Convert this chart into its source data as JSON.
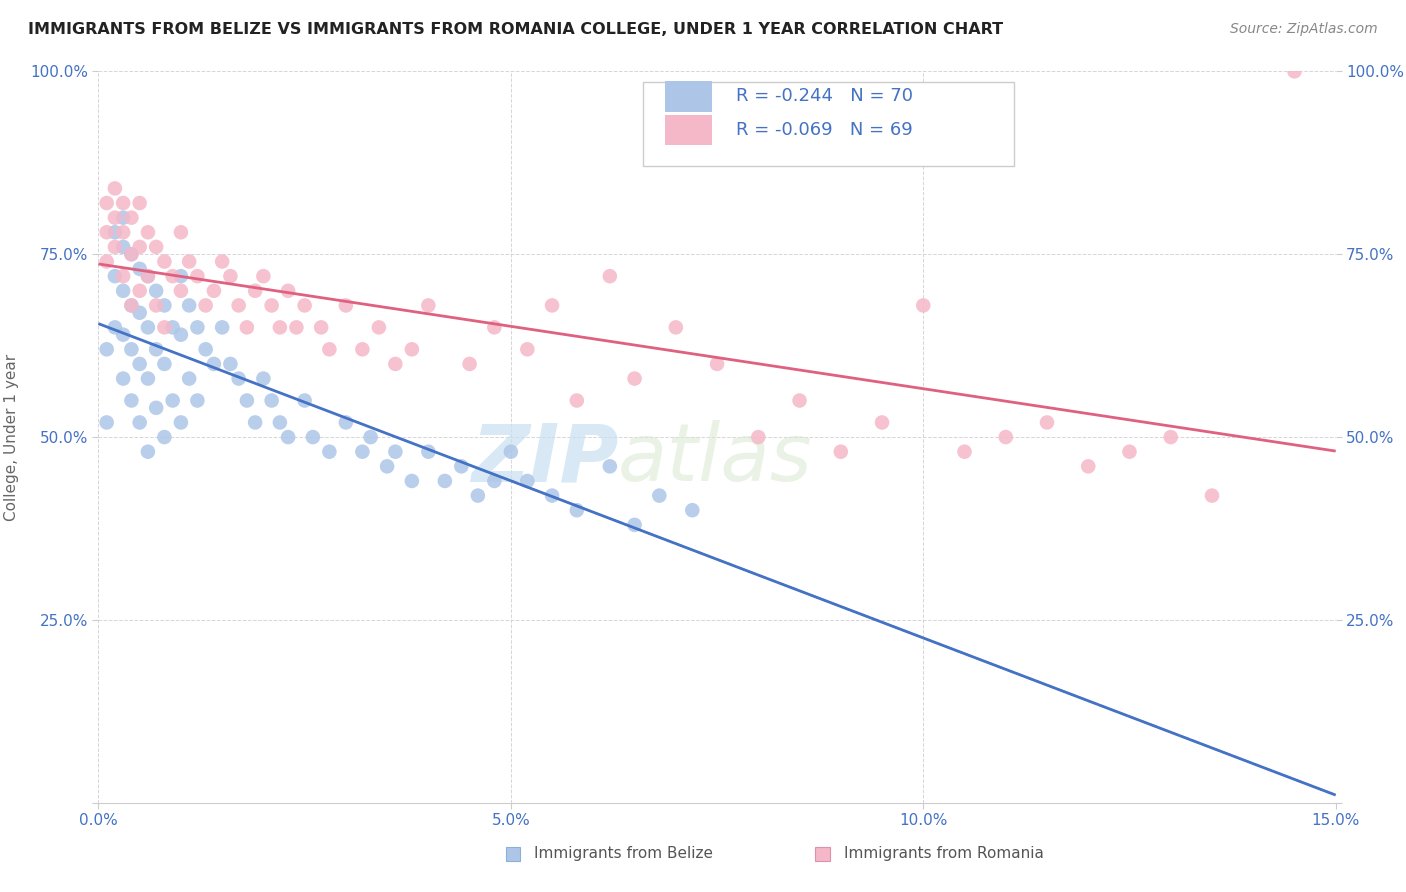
{
  "title": "IMMIGRANTS FROM BELIZE VS IMMIGRANTS FROM ROMANIA COLLEGE, UNDER 1 YEAR CORRELATION CHART",
  "source": "Source: ZipAtlas.com",
  "xmin": 0.0,
  "xmax": 0.15,
  "ymin": 0.0,
  "ymax": 1.0,
  "ylabel": "College, Under 1 year",
  "legend_belize": "Immigrants from Belize",
  "legend_romania": "Immigrants from Romania",
  "r_belize": -0.244,
  "n_belize": 70,
  "r_romania": -0.069,
  "n_romania": 69,
  "color_belize": "#adc6e8",
  "color_romania": "#f5b8c8",
  "line_color_belize": "#4472c4",
  "line_color_romania": "#e06080",
  "tick_color": "#4472c4",
  "watermark_zip": "ZIP",
  "watermark_atlas": "atlas",
  "belize_x": [
    0.001,
    0.001,
    0.002,
    0.002,
    0.002,
    0.003,
    0.003,
    0.003,
    0.003,
    0.003,
    0.004,
    0.004,
    0.004,
    0.004,
    0.005,
    0.005,
    0.005,
    0.005,
    0.006,
    0.006,
    0.006,
    0.006,
    0.007,
    0.007,
    0.007,
    0.008,
    0.008,
    0.008,
    0.009,
    0.009,
    0.01,
    0.01,
    0.01,
    0.011,
    0.011,
    0.012,
    0.012,
    0.013,
    0.014,
    0.015,
    0.016,
    0.017,
    0.018,
    0.019,
    0.02,
    0.021,
    0.022,
    0.023,
    0.025,
    0.026,
    0.028,
    0.03,
    0.032,
    0.033,
    0.035,
    0.036,
    0.038,
    0.04,
    0.042,
    0.044,
    0.046,
    0.048,
    0.05,
    0.052,
    0.055,
    0.058,
    0.062,
    0.065,
    0.068,
    0.072
  ],
  "belize_y": [
    0.62,
    0.52,
    0.78,
    0.72,
    0.65,
    0.8,
    0.76,
    0.7,
    0.64,
    0.58,
    0.75,
    0.68,
    0.62,
    0.55,
    0.73,
    0.67,
    0.6,
    0.52,
    0.72,
    0.65,
    0.58,
    0.48,
    0.7,
    0.62,
    0.54,
    0.68,
    0.6,
    0.5,
    0.65,
    0.55,
    0.72,
    0.64,
    0.52,
    0.68,
    0.58,
    0.65,
    0.55,
    0.62,
    0.6,
    0.65,
    0.6,
    0.58,
    0.55,
    0.52,
    0.58,
    0.55,
    0.52,
    0.5,
    0.55,
    0.5,
    0.48,
    0.52,
    0.48,
    0.5,
    0.46,
    0.48,
    0.44,
    0.48,
    0.44,
    0.46,
    0.42,
    0.44,
    0.48,
    0.44,
    0.42,
    0.4,
    0.46,
    0.38,
    0.42,
    0.4
  ],
  "romania_x": [
    0.001,
    0.001,
    0.001,
    0.002,
    0.002,
    0.002,
    0.003,
    0.003,
    0.003,
    0.004,
    0.004,
    0.004,
    0.005,
    0.005,
    0.005,
    0.006,
    0.006,
    0.007,
    0.007,
    0.008,
    0.008,
    0.009,
    0.01,
    0.01,
    0.011,
    0.012,
    0.013,
    0.014,
    0.015,
    0.016,
    0.017,
    0.018,
    0.019,
    0.02,
    0.021,
    0.022,
    0.023,
    0.024,
    0.025,
    0.027,
    0.028,
    0.03,
    0.032,
    0.034,
    0.036,
    0.038,
    0.04,
    0.045,
    0.048,
    0.052,
    0.055,
    0.058,
    0.062,
    0.065,
    0.07,
    0.075,
    0.08,
    0.085,
    0.09,
    0.095,
    0.1,
    0.105,
    0.11,
    0.115,
    0.12,
    0.125,
    0.13,
    0.135,
    0.145
  ],
  "romania_y": [
    0.82,
    0.78,
    0.74,
    0.84,
    0.8,
    0.76,
    0.82,
    0.78,
    0.72,
    0.8,
    0.75,
    0.68,
    0.82,
    0.76,
    0.7,
    0.78,
    0.72,
    0.76,
    0.68,
    0.74,
    0.65,
    0.72,
    0.78,
    0.7,
    0.74,
    0.72,
    0.68,
    0.7,
    0.74,
    0.72,
    0.68,
    0.65,
    0.7,
    0.72,
    0.68,
    0.65,
    0.7,
    0.65,
    0.68,
    0.65,
    0.62,
    0.68,
    0.62,
    0.65,
    0.6,
    0.62,
    0.68,
    0.6,
    0.65,
    0.62,
    0.68,
    0.55,
    0.72,
    0.58,
    0.65,
    0.6,
    0.5,
    0.55,
    0.48,
    0.52,
    0.68,
    0.48,
    0.5,
    0.52,
    0.46,
    0.48,
    0.5,
    0.42,
    1.0
  ]
}
